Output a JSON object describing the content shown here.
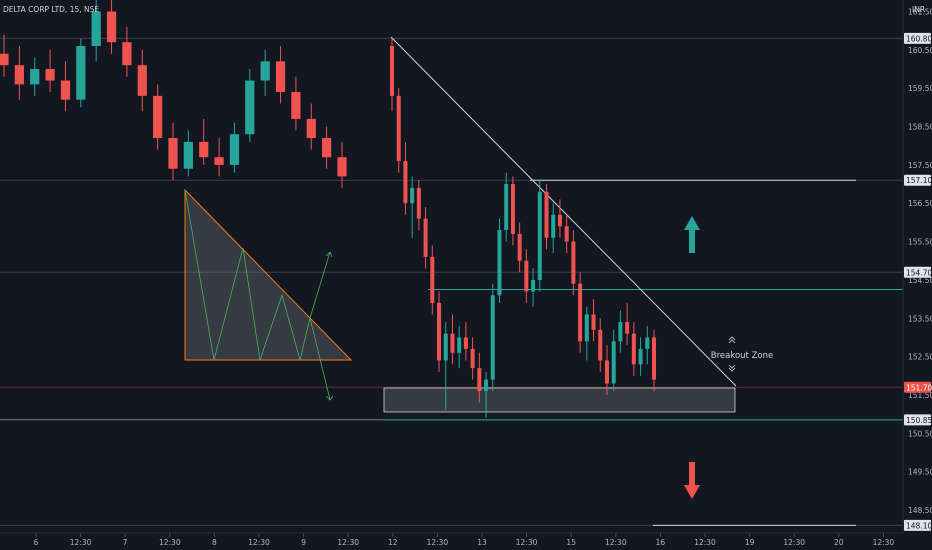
{
  "chart_data": {
    "type": "candlestick",
    "symbol_text": "DELTA CORP LTD, 15, NSE",
    "currency": "INR",
    "ylim": [
      147.9,
      161.8
    ],
    "y_ticks": [
      161.5,
      160.5,
      159.5,
      158.5,
      157.5,
      156.5,
      155.5,
      154.5,
      153.5,
      152.5,
      151.5,
      150.5,
      149.5,
      148.5
    ],
    "x_ticks": [
      "6",
      "12:30",
      "7",
      "12:30",
      "8",
      "12:30",
      "9",
      "12:30",
      "12",
      "12:30",
      "13",
      "12:30",
      "15",
      "12:30",
      "16",
      "12:30",
      "19",
      "12:30",
      "20",
      "12:30"
    ],
    "level_badges": [
      {
        "label": "160.80",
        "value": 160.8,
        "kind": "line"
      },
      {
        "label": "157.10",
        "value": 157.1,
        "kind": "line"
      },
      {
        "label": "154.70",
        "value": 154.7,
        "kind": "line"
      },
      {
        "label": "151.70",
        "value": 151.7,
        "kind": "current"
      },
      {
        "label": "150.85",
        "value": 150.85,
        "kind": "line"
      },
      {
        "label": "148.10",
        "value": 148.1,
        "kind": "line"
      }
    ],
    "current_price": 151.7,
    "annotation": "Breakout Zone",
    "bars_day1": [
      {
        "o": 160.4,
        "h": 160.9,
        "l": 159.8,
        "c": 160.1
      },
      {
        "o": 160.1,
        "h": 160.6,
        "l": 159.2,
        "c": 159.6
      },
      {
        "o": 159.6,
        "h": 160.3,
        "l": 159.3,
        "c": 160.0
      },
      {
        "o": 160.0,
        "h": 160.5,
        "l": 159.4,
        "c": 159.7
      },
      {
        "o": 159.7,
        "h": 160.2,
        "l": 158.9,
        "c": 159.2
      },
      {
        "o": 159.2,
        "h": 160.8,
        "l": 159.0,
        "c": 160.6
      },
      {
        "o": 160.6,
        "h": 161.8,
        "l": 160.2,
        "c": 161.5
      },
      {
        "o": 161.5,
        "h": 161.8,
        "l": 160.4,
        "c": 160.7
      },
      {
        "o": 160.7,
        "h": 161.1,
        "l": 159.8,
        "c": 160.1
      },
      {
        "o": 160.1,
        "h": 160.5,
        "l": 158.9,
        "c": 159.3
      },
      {
        "o": 159.3,
        "h": 159.6,
        "l": 157.9,
        "c": 158.2
      },
      {
        "o": 158.2,
        "h": 158.6,
        "l": 157.1,
        "c": 157.4
      },
      {
        "o": 157.4,
        "h": 158.4,
        "l": 157.2,
        "c": 158.1
      },
      {
        "o": 158.1,
        "h": 158.7,
        "l": 157.5,
        "c": 157.7
      },
      {
        "o": 157.7,
        "h": 158.2,
        "l": 157.2,
        "c": 157.5
      },
      {
        "o": 157.5,
        "h": 158.6,
        "l": 157.3,
        "c": 158.3
      },
      {
        "o": 158.3,
        "h": 160.0,
        "l": 158.1,
        "c": 159.7
      },
      {
        "o": 159.7,
        "h": 160.5,
        "l": 159.3,
        "c": 160.2
      },
      {
        "o": 160.2,
        "h": 160.6,
        "l": 159.1,
        "c": 159.4
      },
      {
        "o": 159.4,
        "h": 159.8,
        "l": 158.4,
        "c": 158.7
      },
      {
        "o": 158.7,
        "h": 159.1,
        "l": 157.9,
        "c": 158.2
      },
      {
        "o": 158.2,
        "h": 158.5,
        "l": 157.4,
        "c": 157.7
      },
      {
        "o": 157.7,
        "h": 158.1,
        "l": 156.9,
        "c": 157.2
      }
    ],
    "bars_day2": [
      {
        "o": 160.6,
        "h": 160.8,
        "l": 158.9,
        "c": 159.3
      },
      {
        "o": 159.3,
        "h": 159.5,
        "l": 157.3,
        "c": 157.6
      },
      {
        "o": 157.6,
        "h": 158.1,
        "l": 156.2,
        "c": 156.5
      },
      {
        "o": 156.5,
        "h": 157.2,
        "l": 155.6,
        "c": 156.9
      },
      {
        "o": 156.9,
        "h": 157.1,
        "l": 155.8,
        "c": 156.1
      },
      {
        "o": 156.1,
        "h": 156.4,
        "l": 154.8,
        "c": 155.1
      },
      {
        "o": 155.1,
        "h": 155.4,
        "l": 153.6,
        "c": 153.9
      },
      {
        "o": 153.9,
        "h": 154.2,
        "l": 152.1,
        "c": 152.4
      },
      {
        "o": 152.4,
        "h": 153.4,
        "l": 151.1,
        "c": 153.1
      },
      {
        "o": 153.1,
        "h": 153.6,
        "l": 152.3,
        "c": 152.6
      },
      {
        "o": 152.6,
        "h": 153.3,
        "l": 152.2,
        "c": 153.0
      },
      {
        "o": 153.0,
        "h": 153.4,
        "l": 152.4,
        "c": 152.7
      },
      {
        "o": 152.7,
        "h": 153.0,
        "l": 151.9,
        "c": 152.2
      },
      {
        "o": 152.2,
        "h": 152.6,
        "l": 151.3,
        "c": 151.6
      },
      {
        "o": 151.6,
        "h": 152.1,
        "l": 150.9,
        "c": 151.9
      },
      {
        "o": 151.9,
        "h": 154.4,
        "l": 151.6,
        "c": 154.1
      },
      {
        "o": 154.1,
        "h": 156.1,
        "l": 153.9,
        "c": 155.8
      },
      {
        "o": 155.8,
        "h": 157.3,
        "l": 155.5,
        "c": 157.0
      },
      {
        "o": 157.0,
        "h": 157.2,
        "l": 155.4,
        "c": 155.7
      },
      {
        "o": 155.7,
        "h": 156.0,
        "l": 154.7,
        "c": 155.0
      },
      {
        "o": 155.0,
        "h": 155.3,
        "l": 153.9,
        "c": 154.2
      },
      {
        "o": 154.2,
        "h": 154.8,
        "l": 153.8,
        "c": 154.5
      },
      {
        "o": 154.5,
        "h": 157.1,
        "l": 154.2,
        "c": 156.8
      },
      {
        "o": 156.8,
        "h": 157.0,
        "l": 155.3,
        "c": 155.6
      },
      {
        "o": 155.6,
        "h": 156.5,
        "l": 155.2,
        "c": 156.2
      },
      {
        "o": 156.2,
        "h": 156.6,
        "l": 155.6,
        "c": 155.9
      },
      {
        "o": 155.9,
        "h": 156.2,
        "l": 155.2,
        "c": 155.5
      },
      {
        "o": 155.5,
        "h": 155.8,
        "l": 154.1,
        "c": 154.4
      },
      {
        "o": 154.4,
        "h": 154.7,
        "l": 152.6,
        "c": 152.9
      },
      {
        "o": 152.9,
        "h": 153.8,
        "l": 152.4,
        "c": 153.6
      },
      {
        "o": 153.6,
        "h": 154.0,
        "l": 152.9,
        "c": 153.2
      },
      {
        "o": 153.2,
        "h": 153.5,
        "l": 152.1,
        "c": 152.4
      },
      {
        "o": 152.4,
        "h": 152.8,
        "l": 151.5,
        "c": 151.8
      },
      {
        "o": 151.8,
        "h": 153.2,
        "l": 151.6,
        "c": 152.9
      },
      {
        "o": 152.9,
        "h": 153.7,
        "l": 152.6,
        "c": 153.4
      },
      {
        "o": 153.4,
        "h": 153.9,
        "l": 152.8,
        "c": 153.1
      },
      {
        "o": 153.1,
        "h": 153.4,
        "l": 152.0,
        "c": 152.3
      },
      {
        "o": 152.3,
        "h": 153.0,
        "l": 152.0,
        "c": 152.7
      },
      {
        "o": 152.7,
        "h": 153.3,
        "l": 152.3,
        "c": 153.0
      },
      {
        "o": 153.0,
        "h": 153.2,
        "l": 151.6,
        "c": 151.9
      }
    ]
  }
}
